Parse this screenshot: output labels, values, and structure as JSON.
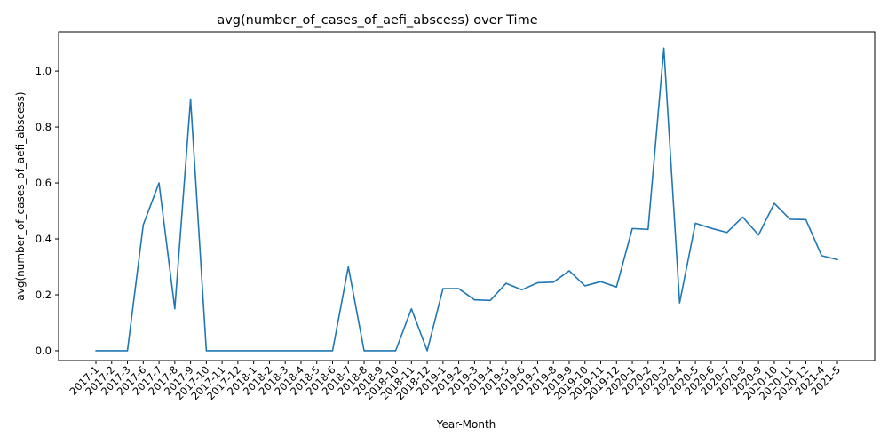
{
  "chart_data": {
    "type": "line",
    "title": "avg(number_of_cases_of_aefi_abscess) over Time",
    "xlabel": "Year-Month",
    "ylabel": "avg(number_of_cases_of_aefi_abscess)",
    "ylim": [
      -0.035,
      1.14
    ],
    "yticks": [
      0.0,
      0.2,
      0.4,
      0.6,
      0.8,
      1.0
    ],
    "ytick_labels": [
      "0.0",
      "0.2",
      "0.4",
      "0.6",
      "0.8",
      "1.0"
    ],
    "grid": false,
    "line_color": "#1f77b4",
    "categories": [
      "2017-1",
      "2017-2",
      "2017-3",
      "2017-6",
      "2017-7",
      "2017-8",
      "2017-9",
      "2017-10",
      "2017-11",
      "2017-12",
      "2018-1",
      "2018-2",
      "2018-3",
      "2018-4",
      "2018-5",
      "2018-6",
      "2018-7",
      "2018-8",
      "2018-9",
      "2018-10",
      "2018-11",
      "2018-12",
      "2019-1",
      "2019-2",
      "2019-3",
      "2019-4",
      "2019-5",
      "2019-6",
      "2019-7",
      "2019-8",
      "2019-9",
      "2019-10",
      "2019-11",
      "2019-12",
      "2020-1",
      "2020-2",
      "2020-3",
      "2020-4",
      "2020-5",
      "2020-6",
      "2020-7",
      "2020-8",
      "2020-9",
      "2020-10",
      "2020-11",
      "2020-12",
      "2021-4",
      "2021-5"
    ],
    "values": [
      0.0,
      0.0,
      0.0,
      0.45,
      0.6,
      0.15,
      0.9,
      0.0,
      0.0,
      0.0,
      0.0,
      0.0,
      0.0,
      0.0,
      0.0,
      0.0,
      0.3,
      0.0,
      0.0,
      0.0,
      0.15,
      0.0,
      0.222,
      0.222,
      0.182,
      0.18,
      0.241,
      0.218,
      0.243,
      0.245,
      0.286,
      0.232,
      0.247,
      0.228,
      0.437,
      0.434,
      1.082,
      0.171,
      0.456,
      0.438,
      0.423,
      0.478,
      0.414,
      0.527,
      0.47,
      0.469,
      0.34,
      0.326
    ]
  }
}
